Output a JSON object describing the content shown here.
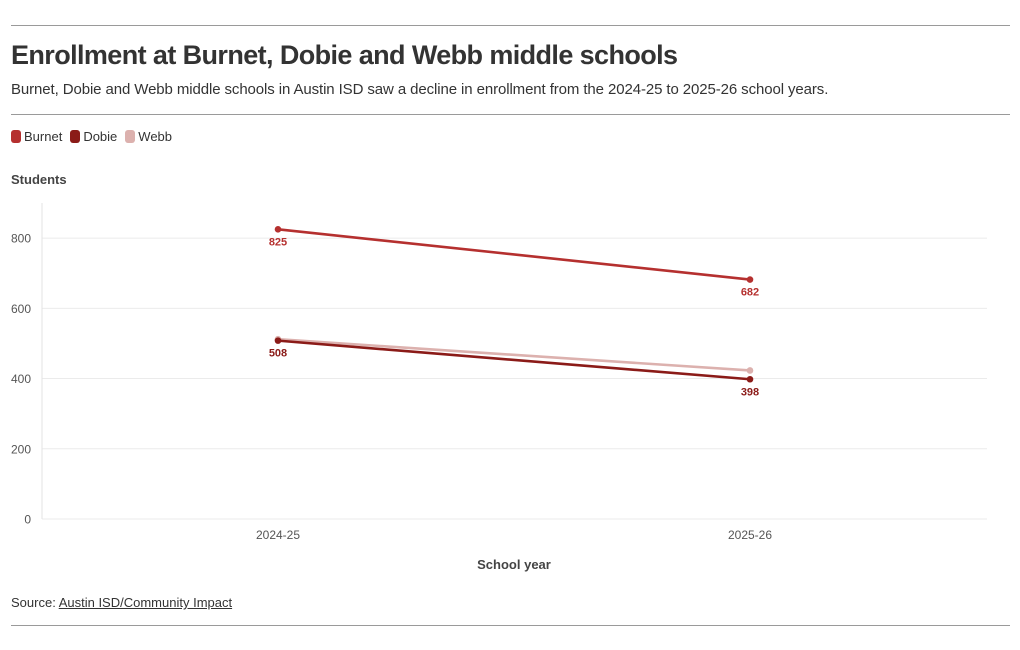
{
  "chart_data": {
    "type": "line",
    "title": "Enrollment at Burnet, Dobie and Webb middle schools",
    "subtitle": "Burnet, Dobie and Webb middle schools in Austin ISD saw a decline in enrollment from the 2024-25 to 2025-26 school years.",
    "xlabel": "School year",
    "ylabel": "Students",
    "categories": [
      "2024-25",
      "2025-26"
    ],
    "ylim": [
      0,
      900
    ],
    "yticks": [
      0,
      200,
      400,
      600,
      800
    ],
    "series": [
      {
        "name": "Burnet",
        "values": [
          825,
          682
        ],
        "color": "#b5302f",
        "labels": [
          "825",
          "682"
        ]
      },
      {
        "name": "Dobie",
        "values": [
          508,
          398
        ],
        "color": "#8b1b18",
        "labels": [
          "508",
          "398"
        ]
      },
      {
        "name": "Webb",
        "values": [
          512,
          423
        ],
        "color": "#dcb1ae",
        "labels": [
          "",
          ""
        ]
      }
    ],
    "grid": true
  },
  "source": {
    "prefix": "Source: ",
    "link_text": "Austin ISD/Community Impact"
  }
}
